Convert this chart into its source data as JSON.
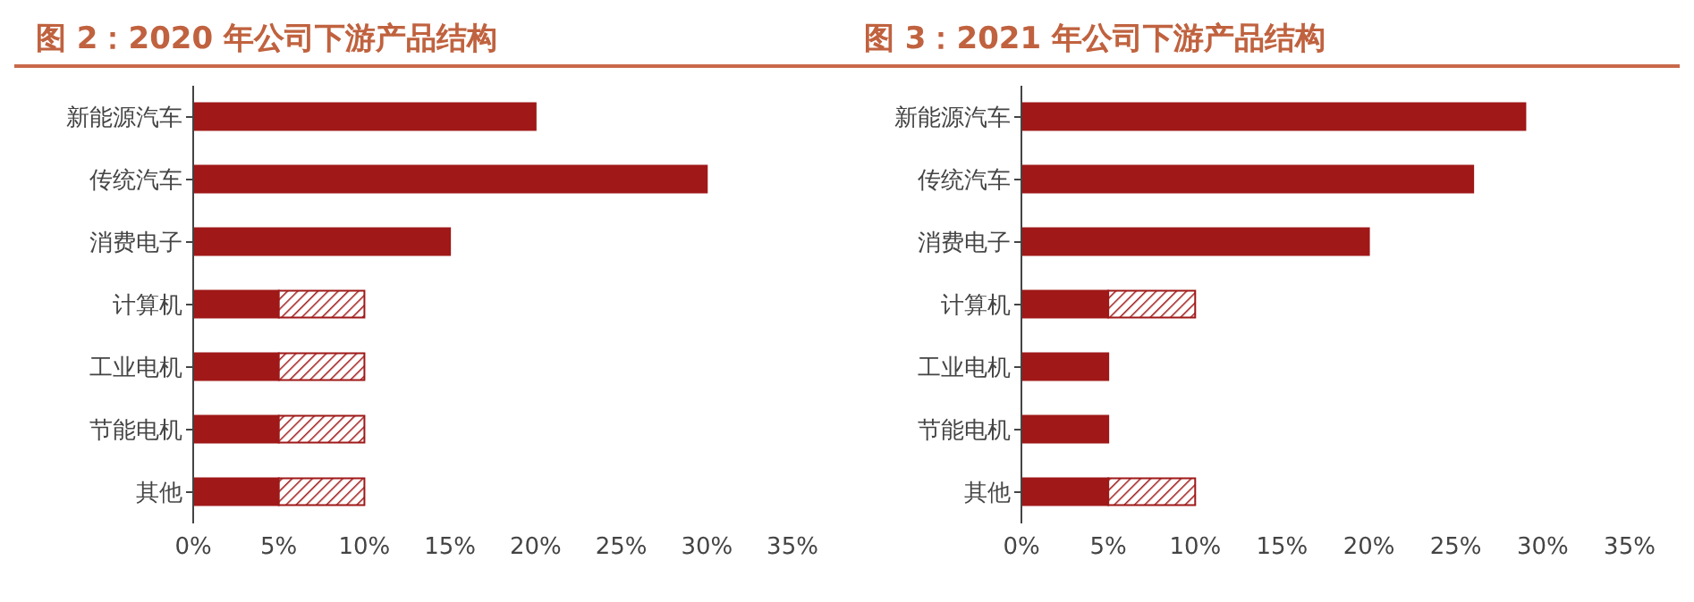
{
  "chart_data": [
    {
      "type": "bar",
      "title": "图 2：2020 年公司下游产品结构",
      "orientation": "horizontal",
      "stacked": true,
      "categories": [
        "新能源汽车",
        "传统汽车",
        "消费电子",
        "计算机",
        "工业电机",
        "节能电机",
        "其他"
      ],
      "series": [
        {
          "color": "#a01818",
          "values": [
            20,
            30,
            15,
            5,
            5,
            5,
            5
          ]
        },
        {
          "color": "#a01818",
          "values": [
            null,
            null,
            null,
            5,
            5,
            5,
            5
          ]
        }
      ],
      "xlim": [
        0,
        35
      ],
      "xticks": [
        {
          "value": 0,
          "label": "0%"
        },
        {
          "value": 5,
          "label": "5%"
        },
        {
          "value": 10,
          "label": "10%"
        },
        {
          "value": 15,
          "label": "15%"
        },
        {
          "value": 20,
          "label": "20%"
        },
        {
          "value": 25,
          "label": "25%"
        },
        {
          "value": 30,
          "label": "30%"
        },
        {
          "value": 35,
          "label": "35%"
        }
      ],
      "grid": false,
      "legend": false
    },
    {
      "type": "bar",
      "title": "图 3：2021 年公司下游产品结构",
      "orientation": "horizontal",
      "stacked": true,
      "categories": [
        "新能源汽车",
        "传统汽车",
        "消费电子",
        "计算机",
        "工业电机",
        "节能电机",
        "其他"
      ],
      "series": [
        {
          "color": "#a01818",
          "values": [
            29,
            26,
            20,
            5,
            5,
            5,
            5
          ]
        },
        {
          "color": "#a01818",
          "values": [
            null,
            null,
            null,
            5,
            null,
            null,
            5
          ]
        }
      ],
      "xlim": [
        0,
        35
      ],
      "xticks": [
        {
          "value": 0,
          "label": "0%"
        },
        {
          "value": 5,
          "label": "5%"
        },
        {
          "value": 10,
          "label": "10%"
        },
        {
          "value": 15,
          "label": "15%"
        },
        {
          "value": 20,
          "label": "20%"
        },
        {
          "value": 25,
          "label": "25%"
        },
        {
          "value": 30,
          "label": "30%"
        },
        {
          "value": 35,
          "label": "35%"
        }
      ],
      "grid": false,
      "legend": false
    }
  ]
}
